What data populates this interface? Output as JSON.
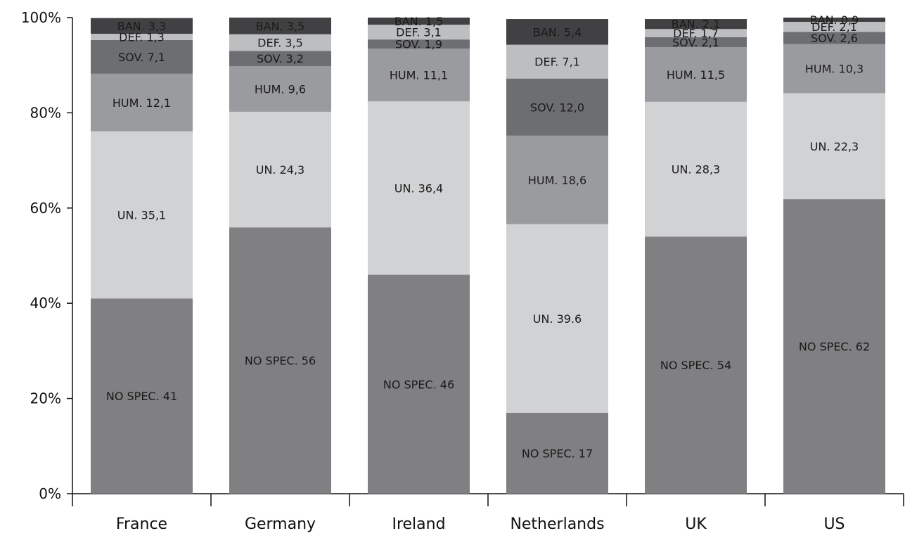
{
  "chart_data": {
    "type": "bar",
    "stacked": true,
    "categories": [
      "France",
      "Germany",
      "Ireland",
      "Netherlands",
      "UK",
      "US"
    ],
    "y_tick_labels": [
      "0%",
      "20%",
      "40%",
      "60%",
      "80%",
      "100%"
    ],
    "ylim": [
      0,
      100
    ],
    "grid": false,
    "series": [
      {
        "color": "#808083",
        "values": [
          41,
          56,
          46,
          17,
          54,
          62
        ],
        "labels": [
          "NO SPEC. 41",
          "NO SPEC. 56",
          "NO SPEC. 46",
          "NO SPEC. 17",
          "NO SPEC. 54",
          "NO SPEC. 62"
        ]
      },
      {
        "color": "#d1d2d4",
        "values": [
          35.1,
          24.3,
          36.4,
          39.6,
          28.3,
          22.3
        ],
        "labels": [
          "UN. 35,1",
          "UN. 24,3",
          "UN. 36,4",
          "UN. 39.6",
          "UN. 28,3",
          "UN. 22,3"
        ]
      },
      {
        "color": "#9a9b9e",
        "values": [
          12.1,
          9.6,
          11.1,
          18.6,
          11.5,
          10.3
        ],
        "labels": [
          "HUM. 12,1",
          "HUM. 9,6",
          "HUM. 11,1",
          "HUM. 18,6",
          "HUM. 11,5",
          "HUM. 10,3"
        ]
      },
      {
        "color": "#6d6e71",
        "values": [
          7.1,
          3.2,
          1.9,
          12.0,
          2.1,
          2.6
        ],
        "labels": [
          "SOV. 7,1",
          "SOV. 3,2",
          "SOV. 1,9",
          "SOV. 12,0",
          "SOV. 2,1",
          "SOV. 2,6"
        ]
      },
      {
        "color": "#bcbec0",
        "values": [
          1.3,
          3.5,
          3.1,
          7.1,
          1.7,
          2.1
        ],
        "labels": [
          "DEF. 1,3",
          "DEF. 3,5",
          "DEF. 3,1",
          "DEF. 7,1",
          "DEF. 1,7",
          "DEF. 2,1"
        ]
      },
      {
        "color": "#414042",
        "values": [
          3.3,
          3.5,
          1.5,
          5.4,
          2.1,
          0.9
        ],
        "labels": [
          "BAN. 3,3",
          "BAN. 3,5",
          "BAN. 1,5",
          "BAN. 5,4",
          "BAN. 2,1",
          "BAN. 0,9"
        ]
      }
    ]
  }
}
